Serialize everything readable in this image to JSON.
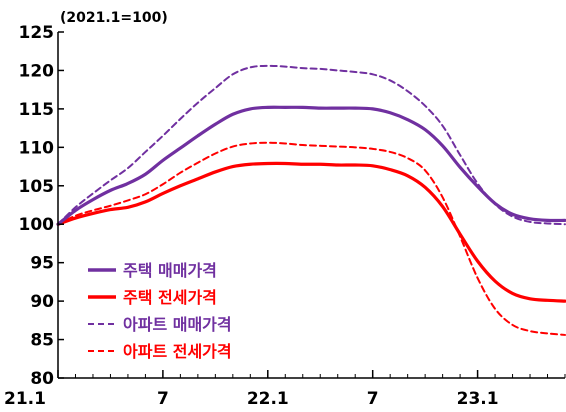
{
  "chart_data": {
    "type": "line",
    "unit_note": "(2021.1=100)",
    "x_tick_labels": [
      "21.1",
      "7",
      "22.1",
      "7",
      "23.1"
    ],
    "x_tick_months": [
      0,
      6,
      12,
      18,
      24
    ],
    "ylim": [
      80,
      125
    ],
    "y_ticks": [
      80,
      85,
      90,
      95,
      100,
      105,
      110,
      115,
      120,
      125
    ],
    "grid": false,
    "legend_position": "bottom-left",
    "x_months": [
      0,
      1,
      2,
      3,
      4,
      5,
      6,
      7,
      8,
      9,
      10,
      11,
      12,
      13,
      14,
      15,
      16,
      17,
      18,
      19,
      20,
      21,
      22,
      23,
      24,
      25,
      26,
      27,
      28,
      29
    ],
    "series": [
      {
        "name": "주택 매매가격",
        "color": "#7030A0",
        "dash": "solid",
        "values": [
          100.0,
          101.8,
          103.2,
          104.4,
          105.3,
          106.5,
          108.3,
          109.9,
          111.5,
          113.0,
          114.3,
          115.0,
          115.2,
          115.2,
          115.2,
          115.1,
          115.1,
          115.1,
          115.0,
          114.5,
          113.6,
          112.3,
          110.2,
          107.4,
          104.9,
          102.7,
          101.3,
          100.7,
          100.5,
          100.5
        ]
      },
      {
        "name": "주택 전세가격",
        "color": "#FF0000",
        "dash": "solid",
        "values": [
          100.0,
          100.8,
          101.4,
          101.9,
          102.2,
          102.9,
          104.0,
          105.0,
          105.9,
          106.8,
          107.5,
          107.8,
          107.9,
          107.9,
          107.8,
          107.8,
          107.7,
          107.7,
          107.6,
          107.1,
          106.3,
          104.8,
          102.3,
          98.7,
          95.2,
          92.6,
          91.0,
          90.3,
          90.1,
          90.0
        ]
      },
      {
        "name": "아파트 매매가격",
        "color": "#7030A0",
        "dash": "dashed",
        "values": [
          100.0,
          102.2,
          104.0,
          105.7,
          107.3,
          109.4,
          111.5,
          113.7,
          115.8,
          117.7,
          119.5,
          120.4,
          120.6,
          120.5,
          120.3,
          120.2,
          120.0,
          119.8,
          119.5,
          118.7,
          117.3,
          115.4,
          112.8,
          109.0,
          105.3,
          102.6,
          101.0,
          100.3,
          100.1,
          100.0
        ]
      },
      {
        "name": "아파트 전세가격",
        "color": "#FF0000",
        "dash": "dashed",
        "values": [
          100.0,
          101.1,
          101.8,
          102.4,
          103.1,
          103.9,
          105.2,
          106.7,
          108.0,
          109.2,
          110.1,
          110.5,
          110.6,
          110.5,
          110.3,
          110.2,
          110.1,
          110.0,
          109.8,
          109.4,
          108.6,
          107.0,
          103.5,
          98.4,
          93.0,
          89.0,
          86.9,
          86.1,
          85.8,
          85.6
        ]
      }
    ]
  }
}
